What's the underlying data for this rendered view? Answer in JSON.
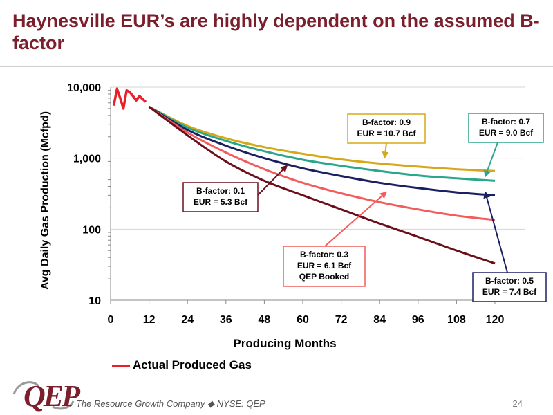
{
  "slide": {
    "title": "Haynesville EUR’s are highly dependent on the assumed B-factor",
    "page_number": "24"
  },
  "footer": {
    "logo_text": "QEP",
    "tagline": "The Resource Growth Company ◆ NYSE: QEP"
  },
  "colors": {
    "title": "#7a1f2b",
    "actual": "#e8202a",
    "b01": "#6b0f1a",
    "b03": "#f25c5c",
    "b05": "#1a2060",
    "b07": "#2aa68a",
    "b09": "#d6a817"
  },
  "chart_data": {
    "type": "line",
    "title": "",
    "xlabel": "Producing Months",
    "ylabel": "Avg Daily Gas Production (Mcfpd)",
    "xlim": [
      0,
      120
    ],
    "ylim": [
      10,
      10000
    ],
    "y_scale": "log",
    "x_ticks": [
      "0",
      "12",
      "24",
      "36",
      "48",
      "60",
      "72",
      "84",
      "96",
      "108",
      "120"
    ],
    "y_ticks": [
      "10",
      "100",
      "1,000",
      "10,000"
    ],
    "grid": "horizontal",
    "legend": [
      {
        "label": "Actual Produced Gas",
        "series": "actual"
      }
    ],
    "series": [
      {
        "id": "actual",
        "name": "Actual Produced Gas",
        "x": [
          1,
          2,
          3,
          4,
          5,
          6,
          7,
          8,
          9,
          10,
          11
        ],
        "y": [
          5500,
          9500,
          7000,
          5000,
          9000,
          8500,
          7500,
          6500,
          7500,
          6800,
          6200
        ]
      },
      {
        "id": "b09",
        "x": [
          12,
          24,
          36,
          48,
          60,
          72,
          84,
          96,
          108,
          120
        ],
        "y": [
          5300,
          2850,
          1900,
          1430,
          1150,
          960,
          840,
          760,
          700,
          660
        ]
      },
      {
        "id": "b07",
        "x": [
          12,
          24,
          36,
          48,
          60,
          72,
          84,
          96,
          108,
          120
        ],
        "y": [
          5300,
          2700,
          1750,
          1250,
          950,
          780,
          660,
          570,
          520,
          480
        ]
      },
      {
        "id": "b05",
        "x": [
          12,
          24,
          36,
          48,
          60,
          72,
          84,
          96,
          108,
          120
        ],
        "y": [
          5300,
          2500,
          1500,
          1000,
          720,
          560,
          450,
          380,
          330,
          300
        ]
      },
      {
        "id": "b03",
        "x": [
          12,
          24,
          36,
          48,
          60,
          72,
          84,
          96,
          108,
          120
        ],
        "y": [
          5300,
          2300,
          1200,
          700,
          450,
          320,
          240,
          190,
          155,
          135
        ]
      },
      {
        "id": "b01",
        "x": [
          12,
          24,
          36,
          48,
          60,
          72,
          84,
          96,
          108,
          120
        ],
        "y": [
          5300,
          2100,
          900,
          480,
          300,
          190,
          120,
          78,
          50,
          33
        ]
      }
    ],
    "annotations": [
      {
        "lines": [
          "B-factor: 0.9",
          "EUR = 10.7 Bcf"
        ],
        "series": "b09",
        "point": [
          86,
          940
        ]
      },
      {
        "lines": [
          "B-factor: 0.7",
          "EUR = 9.0 Bcf"
        ],
        "series": "b07",
        "point": [
          117,
          510
        ]
      },
      {
        "lines": [
          "B-factor: 0.1",
          "EUR = 5.3 Bcf"
        ],
        "series": "b01",
        "point": [
          55,
          780
        ]
      },
      {
        "lines": [
          "B-factor: 0.3",
          "EUR = 6.1 Bcf",
          "QEP Booked"
        ],
        "series": "b03",
        "point": [
          86,
          330
        ]
      },
      {
        "lines": [
          "B-factor: 0.5",
          "EUR = 7.4 Bcf"
        ],
        "series": "b05",
        "point": [
          117,
          330
        ]
      }
    ]
  }
}
